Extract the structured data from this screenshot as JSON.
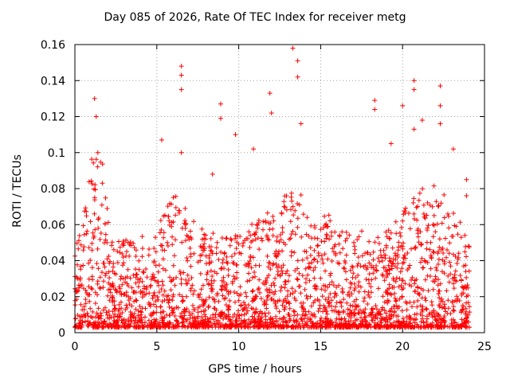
{
  "chart_data": {
    "type": "scatter",
    "title": "Day 085 of 2026, Rate Of TEC Index for receiver metg",
    "xlabel": "GPS time / hours",
    "ylabel": "ROTI / TECUs",
    "xlim": [
      0,
      25
    ],
    "ylim": [
      0,
      0.16
    ],
    "xticks": [
      "0",
      "5",
      "10",
      "15",
      "20",
      "25"
    ],
    "yticks": [
      "0",
      "0.02",
      "0.04",
      "0.06",
      "0.08",
      "0.1",
      "0.12",
      "0.14",
      "0.16"
    ],
    "grid": true,
    "marker": "+",
    "color": "#ff0000",
    "notable_points": [
      {
        "x": 1.2,
        "y": 0.13
      },
      {
        "x": 1.3,
        "y": 0.12
      },
      {
        "x": 1.4,
        "y": 0.1
      },
      {
        "x": 5.3,
        "y": 0.107
      },
      {
        "x": 6.5,
        "y": 0.148
      },
      {
        "x": 6.5,
        "y": 0.143
      },
      {
        "x": 6.5,
        "y": 0.135
      },
      {
        "x": 6.5,
        "y": 0.1
      },
      {
        "x": 8.4,
        "y": 0.088
      },
      {
        "x": 8.9,
        "y": 0.127
      },
      {
        "x": 8.9,
        "y": 0.119
      },
      {
        "x": 9.8,
        "y": 0.11
      },
      {
        "x": 10.9,
        "y": 0.102
      },
      {
        "x": 11.9,
        "y": 0.133
      },
      {
        "x": 12.0,
        "y": 0.122
      },
      {
        "x": 13.3,
        "y": 0.158
      },
      {
        "x": 13.6,
        "y": 0.151
      },
      {
        "x": 13.6,
        "y": 0.142
      },
      {
        "x": 13.8,
        "y": 0.116
      },
      {
        "x": 18.3,
        "y": 0.129
      },
      {
        "x": 18.3,
        "y": 0.124
      },
      {
        "x": 19.3,
        "y": 0.105
      },
      {
        "x": 20.0,
        "y": 0.126
      },
      {
        "x": 20.7,
        "y": 0.14
      },
      {
        "x": 20.7,
        "y": 0.135
      },
      {
        "x": 20.7,
        "y": 0.113
      },
      {
        "x": 21.2,
        "y": 0.118
      },
      {
        "x": 22.3,
        "y": 0.137
      },
      {
        "x": 22.3,
        "y": 0.126
      },
      {
        "x": 22.3,
        "y": 0.116
      },
      {
        "x": 23.1,
        "y": 0.102
      },
      {
        "x": 23.9,
        "y": 0.085
      },
      {
        "x": 23.9,
        "y": 0.076
      }
    ]
  }
}
